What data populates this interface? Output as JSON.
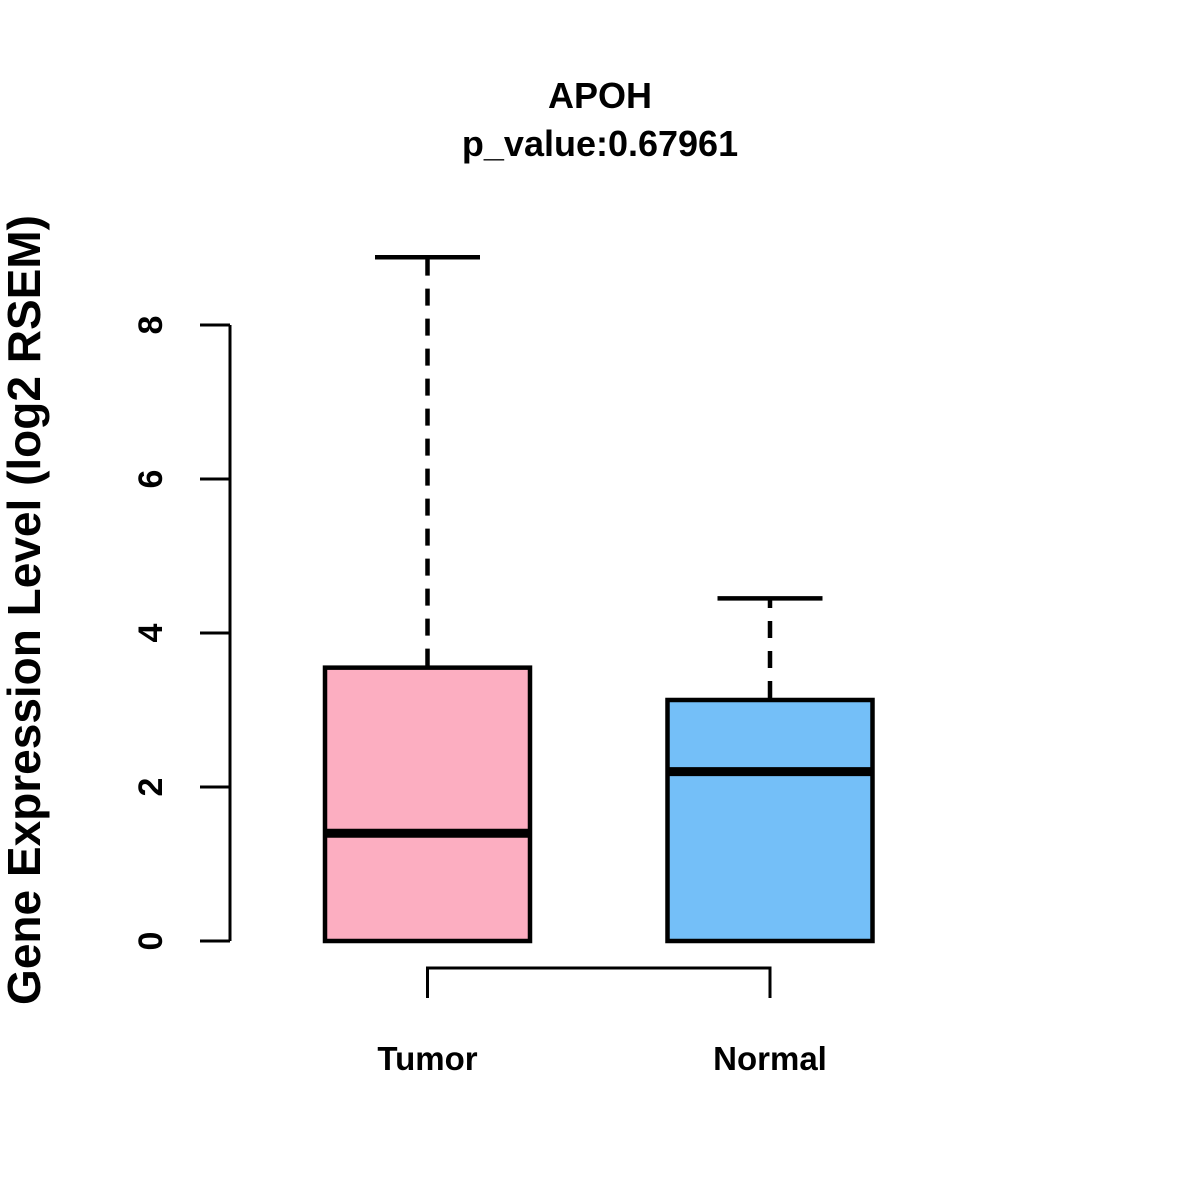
{
  "chart_data": {
    "type": "boxplot",
    "title": "APOH",
    "subtitle": "p_value:0.67961",
    "ylabel": "Gene Expression Level (log2 RSEM)",
    "xlabel": "",
    "y_axis": {
      "ticks": [
        0,
        2,
        4,
        6,
        8
      ],
      "range": [
        0,
        8.9
      ],
      "grid": false
    },
    "categories": [
      "Tumor",
      "Normal"
    ],
    "groups": [
      {
        "label": "Tumor",
        "color": "#FCAEC1",
        "whisker_low": 0,
        "q1": 0,
        "median": 1.4,
        "q3": 3.55,
        "whisker_high": 8.88
      },
      {
        "label": "Normal",
        "color": "#74BFF8",
        "whisker_low": 0,
        "q1": 0,
        "median": 2.2,
        "q3": 3.13,
        "whisker_high": 4.45
      }
    ],
    "comparison_bracket": {
      "from": "Tumor",
      "to": "Normal"
    },
    "line_color": "#000000",
    "background_color": "#ffffff"
  }
}
